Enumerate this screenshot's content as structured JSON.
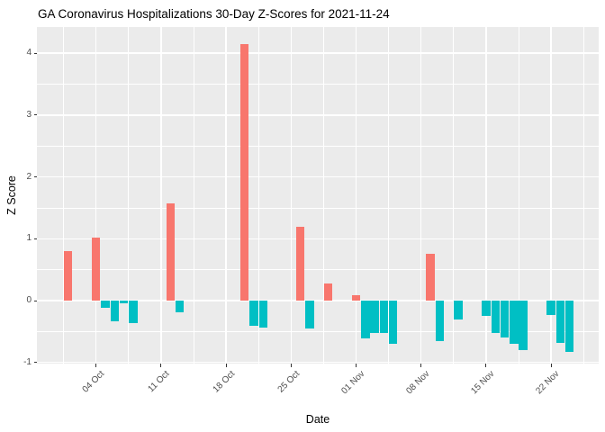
{
  "title": "GA Coronavirus Hospitalizations 30-Day Z-Scores for 2021-11-24",
  "chart_data": {
    "type": "bar",
    "title": "GA Coronavirus Hospitalizations 30-Day Z-Scores for 2021-11-24",
    "xlabel": "Date",
    "ylabel": "Z Score",
    "ylim": [
      -1.02,
      4.43
    ],
    "grid": "on",
    "legend": "none",
    "theme": "ggplot-grey",
    "colors": {
      "positive_bar": "#F8766D",
      "negative_bar": "#00BFC4",
      "panel_background": "#EBEBEB",
      "gridline": "#FFFFFF",
      "tick_text": "#4D4D4D",
      "title_text": "#000000"
    },
    "y_ticks": [
      {
        "value": -1,
        "label": "-1"
      },
      {
        "value": 0,
        "label": "0"
      },
      {
        "value": 1,
        "label": "1"
      },
      {
        "value": 2,
        "label": "2"
      },
      {
        "value": 3,
        "label": "3"
      },
      {
        "value": 4,
        "label": "4"
      }
    ],
    "y_minor_ticks": [
      -0.5,
      0.5,
      1.5,
      2.5,
      3.5
    ],
    "x_ticks": [
      {
        "date": "2021-10-04",
        "label": "04 Oct"
      },
      {
        "date": "2021-10-11",
        "label": "11 Oct"
      },
      {
        "date": "2021-10-18",
        "label": "18 Oct"
      },
      {
        "date": "2021-10-25",
        "label": "25 Oct"
      },
      {
        "date": "2021-11-01",
        "label": "01 Nov"
      },
      {
        "date": "2021-11-08",
        "label": "08 Nov"
      },
      {
        "date": "2021-11-15",
        "label": "15 Nov"
      },
      {
        "date": "2021-11-22",
        "label": "22 Nov"
      }
    ],
    "points": [
      {
        "date": "2021-10-01",
        "z": 0.8
      },
      {
        "date": "2021-10-04",
        "z": 1.02
      },
      {
        "date": "2021-10-05",
        "z": -0.12
      },
      {
        "date": "2021-10-06",
        "z": -0.33
      },
      {
        "date": "2021-10-07",
        "z": -0.04
      },
      {
        "date": "2021-10-08",
        "z": -0.36
      },
      {
        "date": "2021-10-12",
        "z": 1.57
      },
      {
        "date": "2021-10-13",
        "z": -0.19
      },
      {
        "date": "2021-10-20",
        "z": 4.15
      },
      {
        "date": "2021-10-21",
        "z": -0.41
      },
      {
        "date": "2021-10-22",
        "z": -0.44
      },
      {
        "date": "2021-10-26",
        "z": 1.19
      },
      {
        "date": "2021-10-27",
        "z": -0.45
      },
      {
        "date": "2021-10-29",
        "z": 0.27
      },
      {
        "date": "2021-11-01",
        "z": 0.09
      },
      {
        "date": "2021-11-02",
        "z": -0.61
      },
      {
        "date": "2021-11-03",
        "z": -0.52
      },
      {
        "date": "2021-11-04",
        "z": -0.53
      },
      {
        "date": "2021-11-05",
        "z": -0.7
      },
      {
        "date": "2021-11-09",
        "z": 0.76
      },
      {
        "date": "2021-11-10",
        "z": -0.66
      },
      {
        "date": "2021-11-12",
        "z": -0.31
      },
      {
        "date": "2021-11-15",
        "z": -0.25
      },
      {
        "date": "2021-11-16",
        "z": -0.52
      },
      {
        "date": "2021-11-17",
        "z": -0.6
      },
      {
        "date": "2021-11-18",
        "z": -0.7
      },
      {
        "date": "2021-11-19",
        "z": -0.8
      },
      {
        "date": "2021-11-22",
        "z": -0.24
      },
      {
        "date": "2021-11-23",
        "z": -0.69
      },
      {
        "date": "2021-11-24",
        "z": -0.83
      }
    ]
  }
}
